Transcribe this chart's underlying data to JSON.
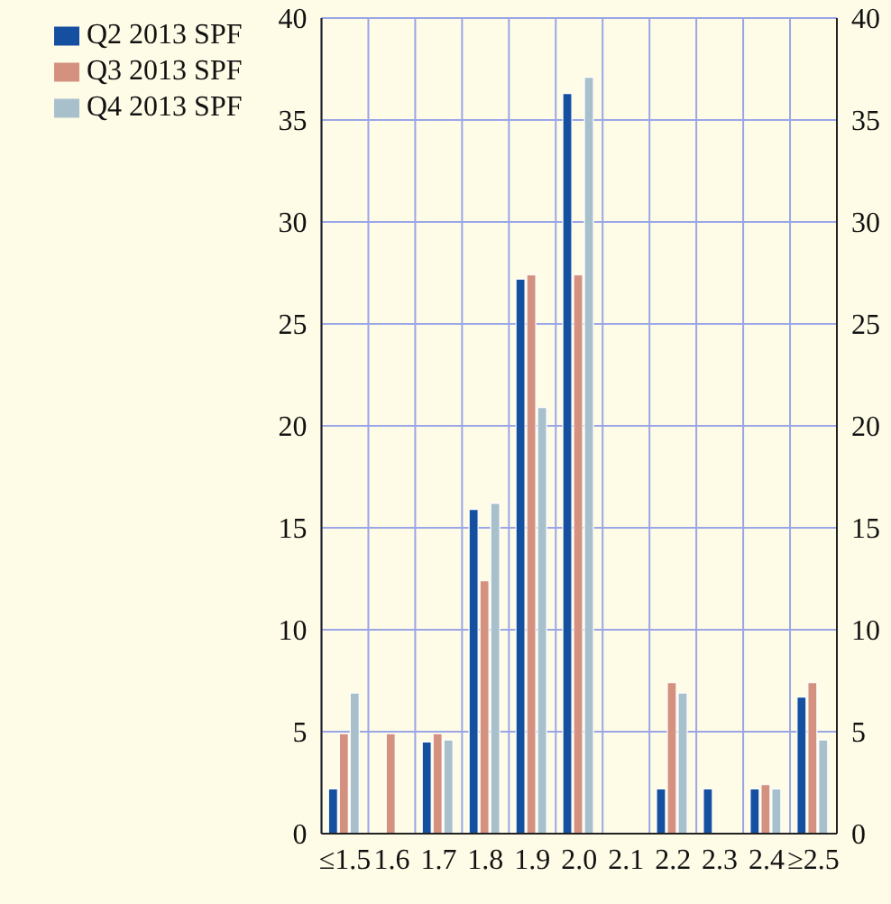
{
  "chart_data": {
    "type": "bar",
    "categories": [
      "≤1.5",
      "1.6",
      "1.7",
      "1.8",
      "1.9",
      "2.0",
      "2.1",
      "2.2",
      "2.3",
      "2.4",
      "≥2.5"
    ],
    "series": [
      {
        "name": "Q2 2013 SPF",
        "color": "#1550a0",
        "values": [
          2.2,
          0,
          4.5,
          15.9,
          27.2,
          36.3,
          0,
          2.2,
          2.2,
          2.2,
          6.7
        ]
      },
      {
        "name": "Q3 2013 SPF",
        "color": "#d4917f",
        "values": [
          4.9,
          4.9,
          4.9,
          12.4,
          27.4,
          27.4,
          0,
          7.4,
          0,
          2.4,
          7.4
        ]
      },
      {
        "name": "Q4 2013 SPF",
        "color": "#a8c0cc",
        "values": [
          6.9,
          0,
          4.6,
          16.2,
          20.9,
          37.1,
          0,
          6.9,
          0,
          2.2,
          4.6
        ]
      }
    ],
    "ylim": [
      0,
      40
    ],
    "yticks": [
      0,
      5,
      10,
      15,
      20,
      25,
      30,
      35,
      40
    ],
    "y2lim": [
      0,
      40
    ],
    "y2ticks": [
      0,
      5,
      10,
      15,
      20,
      25,
      30,
      35,
      40
    ],
    "grid": true,
    "legend": "top left"
  }
}
